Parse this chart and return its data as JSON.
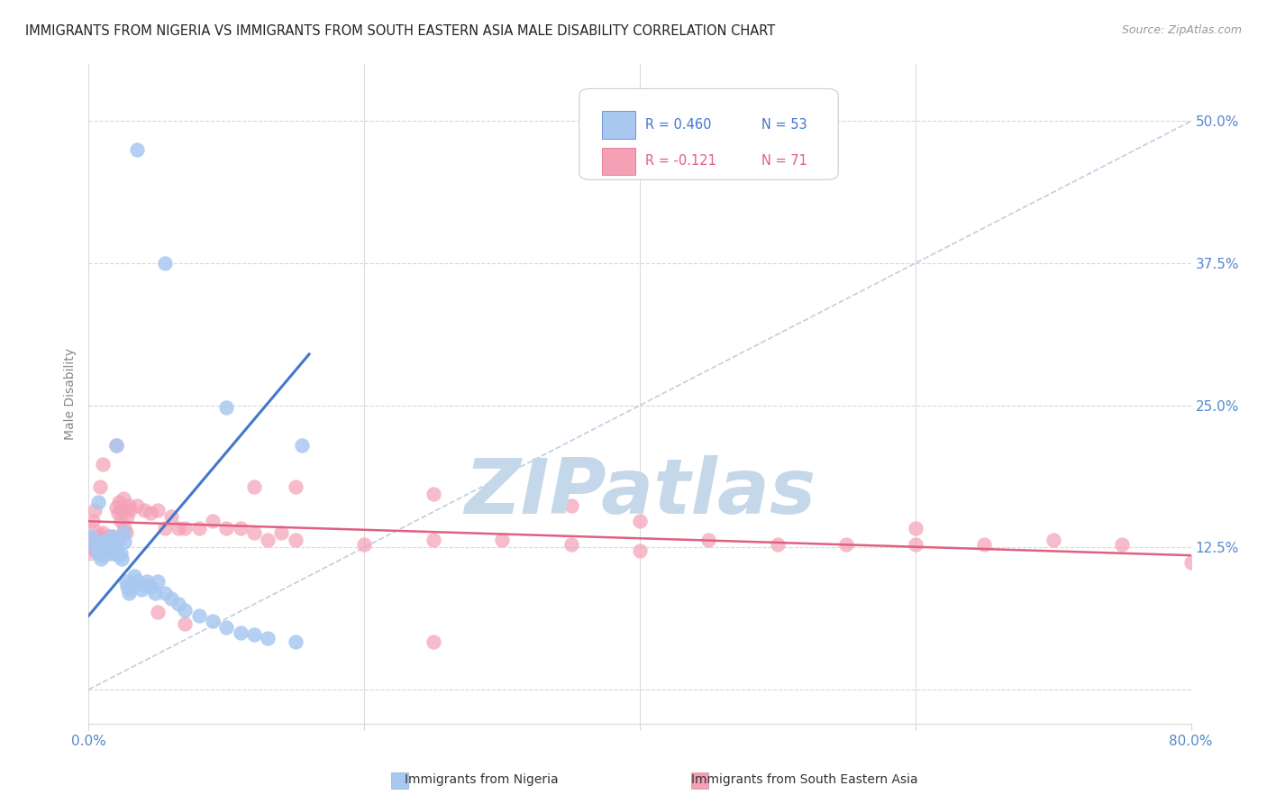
{
  "title": "IMMIGRANTS FROM NIGERIA VS IMMIGRANTS FROM SOUTH EASTERN ASIA MALE DISABILITY CORRELATION CHART",
  "source": "Source: ZipAtlas.com",
  "ylabel": "Male Disability",
  "xlim": [
    0.0,
    0.8
  ],
  "ylim": [
    -0.03,
    0.55
  ],
  "yticks": [
    0.0,
    0.125,
    0.25,
    0.375,
    0.5
  ],
  "ytick_labels": [
    "",
    "12.5%",
    "25.0%",
    "37.5%",
    "50.0%"
  ],
  "xtick_labels": [
    "0.0%",
    "",
    "",
    "",
    "80.0%"
  ],
  "nigeria_color": "#a8c8f0",
  "sea_color": "#f4a0b5",
  "nigeria_line_color": "#4477cc",
  "sea_line_color": "#e06080",
  "diagonal_color": "#c0cfe0",
  "watermark": "ZIPatlas",
  "watermark_color": "#c5d8ea",
  "nigeria_scatter": [
    [
      0.004,
      0.125
    ],
    [
      0.006,
      0.13
    ],
    [
      0.007,
      0.12
    ],
    [
      0.008,
      0.128
    ],
    [
      0.009,
      0.115
    ],
    [
      0.01,
      0.13
    ],
    [
      0.011,
      0.118
    ],
    [
      0.012,
      0.125
    ],
    [
      0.013,
      0.122
    ],
    [
      0.014,
      0.13
    ],
    [
      0.015,
      0.128
    ],
    [
      0.016,
      0.12
    ],
    [
      0.017,
      0.135
    ],
    [
      0.018,
      0.125
    ],
    [
      0.019,
      0.13
    ],
    [
      0.02,
      0.128
    ],
    [
      0.021,
      0.118
    ],
    [
      0.022,
      0.132
    ],
    [
      0.023,
      0.12
    ],
    [
      0.024,
      0.115
    ],
    [
      0.025,
      0.138
    ],
    [
      0.026,
      0.13
    ],
    [
      0.027,
      0.095
    ],
    [
      0.028,
      0.09
    ],
    [
      0.029,
      0.085
    ],
    [
      0.03,
      0.088
    ],
    [
      0.032,
      0.092
    ],
    [
      0.033,
      0.1
    ],
    [
      0.035,
      0.095
    ],
    [
      0.038,
      0.088
    ],
    [
      0.04,
      0.092
    ],
    [
      0.042,
      0.095
    ],
    [
      0.045,
      0.09
    ],
    [
      0.048,
      0.085
    ],
    [
      0.05,
      0.095
    ],
    [
      0.055,
      0.085
    ],
    [
      0.06,
      0.08
    ],
    [
      0.065,
      0.075
    ],
    [
      0.07,
      0.07
    ],
    [
      0.08,
      0.065
    ],
    [
      0.09,
      0.06
    ],
    [
      0.1,
      0.055
    ],
    [
      0.11,
      0.05
    ],
    [
      0.12,
      0.048
    ],
    [
      0.13,
      0.045
    ],
    [
      0.15,
      0.042
    ],
    [
      0.007,
      0.165
    ],
    [
      0.02,
      0.215
    ],
    [
      0.035,
      0.475
    ],
    [
      0.055,
      0.375
    ],
    [
      0.1,
      0.248
    ],
    [
      0.155,
      0.215
    ],
    [
      0.002,
      0.135
    ]
  ],
  "sea_scatter": [
    [
      0.002,
      0.125
    ],
    [
      0.003,
      0.13
    ],
    [
      0.004,
      0.128
    ],
    [
      0.005,
      0.122
    ],
    [
      0.006,
      0.135
    ],
    [
      0.007,
      0.13
    ],
    [
      0.008,
      0.128
    ],
    [
      0.009,
      0.132
    ],
    [
      0.01,
      0.138
    ],
    [
      0.011,
      0.125
    ],
    [
      0.012,
      0.13
    ],
    [
      0.013,
      0.128
    ],
    [
      0.014,
      0.132
    ],
    [
      0.015,
      0.135
    ],
    [
      0.016,
      0.128
    ],
    [
      0.017,
      0.122
    ],
    [
      0.018,
      0.135
    ],
    [
      0.019,
      0.128
    ],
    [
      0.02,
      0.16
    ],
    [
      0.021,
      0.155
    ],
    [
      0.022,
      0.165
    ],
    [
      0.023,
      0.148
    ],
    [
      0.024,
      0.158
    ],
    [
      0.025,
      0.168
    ],
    [
      0.026,
      0.142
    ],
    [
      0.027,
      0.138
    ],
    [
      0.028,
      0.152
    ],
    [
      0.029,
      0.162
    ],
    [
      0.03,
      0.158
    ],
    [
      0.035,
      0.162
    ],
    [
      0.04,
      0.158
    ],
    [
      0.045,
      0.155
    ],
    [
      0.05,
      0.158
    ],
    [
      0.055,
      0.142
    ],
    [
      0.06,
      0.152
    ],
    [
      0.065,
      0.142
    ],
    [
      0.07,
      0.142
    ],
    [
      0.08,
      0.142
    ],
    [
      0.09,
      0.148
    ],
    [
      0.1,
      0.142
    ],
    [
      0.11,
      0.142
    ],
    [
      0.12,
      0.138
    ],
    [
      0.13,
      0.132
    ],
    [
      0.14,
      0.138
    ],
    [
      0.15,
      0.132
    ],
    [
      0.2,
      0.128
    ],
    [
      0.25,
      0.132
    ],
    [
      0.3,
      0.132
    ],
    [
      0.35,
      0.128
    ],
    [
      0.4,
      0.122
    ],
    [
      0.45,
      0.132
    ],
    [
      0.5,
      0.128
    ],
    [
      0.55,
      0.128
    ],
    [
      0.6,
      0.142
    ],
    [
      0.65,
      0.128
    ],
    [
      0.7,
      0.132
    ],
    [
      0.75,
      0.128
    ],
    [
      0.003,
      0.148
    ],
    [
      0.004,
      0.158
    ],
    [
      0.008,
      0.178
    ],
    [
      0.01,
      0.198
    ],
    [
      0.02,
      0.215
    ],
    [
      0.12,
      0.178
    ],
    [
      0.15,
      0.178
    ],
    [
      0.25,
      0.172
    ],
    [
      0.35,
      0.162
    ],
    [
      0.05,
      0.068
    ],
    [
      0.07,
      0.058
    ],
    [
      0.25,
      0.042
    ],
    [
      0.4,
      0.148
    ],
    [
      0.002,
      0.132
    ],
    [
      0.6,
      0.128
    ],
    [
      0.8,
      0.112
    ]
  ],
  "nigeria_line_x": [
    0.0,
    0.16
  ],
  "nigeria_line_y": [
    0.065,
    0.295
  ],
  "sea_line_x": [
    0.0,
    0.8
  ],
  "sea_line_y": [
    0.148,
    0.118
  ],
  "diag_line_x": [
    0.0,
    0.8
  ],
  "diag_line_y": [
    0.0,
    0.5
  ],
  "bg_color": "#ffffff",
  "grid_color": "#d8d8d8",
  "title_color": "#222222",
  "tick_color": "#5588cc",
  "ylabel_color": "#888888"
}
